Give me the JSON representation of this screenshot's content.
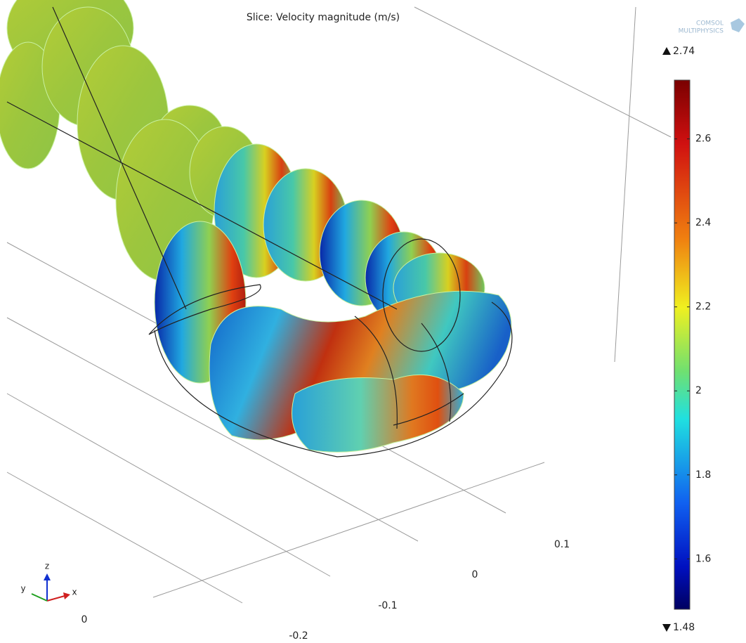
{
  "title": "Slice: Velocity magnitude (m/s)",
  "logo": [
    "COMSOL",
    "MULTIPHYSICS"
  ],
  "colorbar": {
    "max": 2.74,
    "min": 1.48,
    "ticks": [
      2.6,
      2.4,
      2.2,
      2,
      1.8,
      1.6
    ]
  },
  "axis_tick_labels": [
    "0.1",
    "0",
    "-0.1",
    "-0.2",
    "0"
  ],
  "triad": {
    "z": "z",
    "y": "y",
    "x": "x"
  }
}
